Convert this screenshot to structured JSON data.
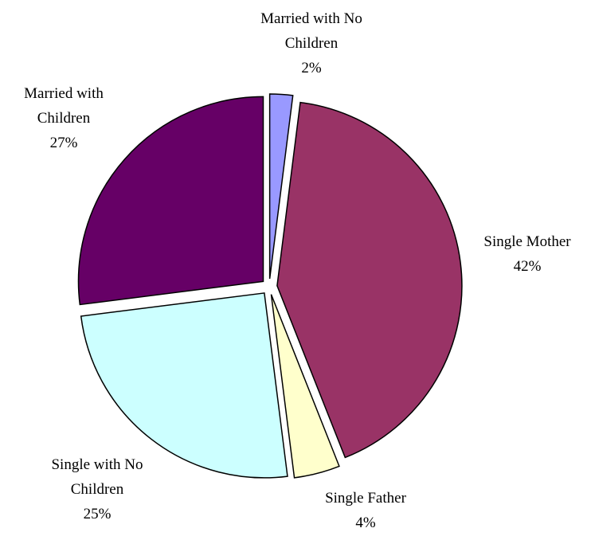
{
  "chart_data": {
    "type": "pie",
    "categories": [
      "Married with No Children",
      "Single Mother",
      "Single Father",
      "Single with No Children",
      "Married with Children"
    ],
    "values": [
      2,
      42,
      4,
      25,
      27
    ],
    "value_labels": [
      "2%",
      "42%",
      "4%",
      "25%",
      "27%"
    ],
    "colors": [
      "#9999ff",
      "#993366",
      "#ffffcc",
      "#ccffff",
      "#660066"
    ]
  }
}
